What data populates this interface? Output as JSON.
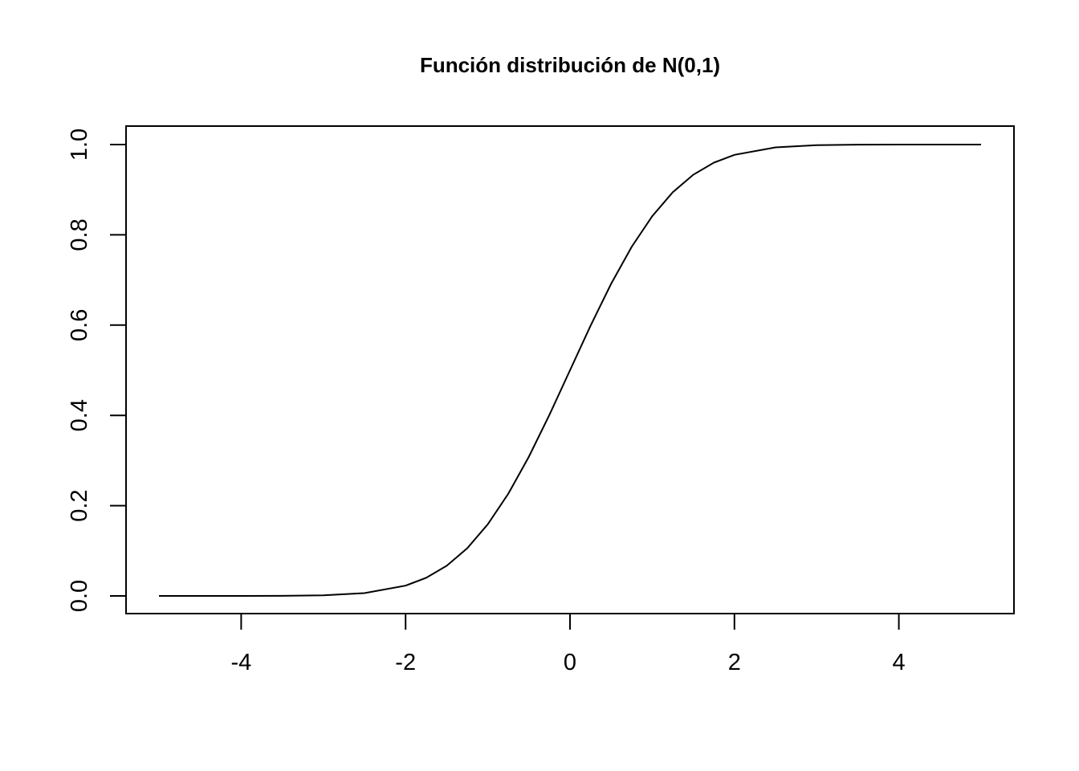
{
  "chart_data": {
    "type": "line",
    "title": "Función distribución de N(0,1)",
    "xlabel": "",
    "ylabel": "",
    "xlim": [
      -5,
      5
    ],
    "ylim": [
      0,
      1
    ],
    "xticks": [
      -4,
      -2,
      0,
      2,
      4
    ],
    "xtick_labels": [
      "-4",
      "-2",
      "0",
      "2",
      "4"
    ],
    "yticks": [
      0,
      0.2,
      0.4,
      0.6,
      0.8,
      1.0
    ],
    "ytick_labels": [
      "0.0",
      "0.2",
      "0.4",
      "0.6",
      "0.8",
      "1.0"
    ],
    "grid": false,
    "legend": "none",
    "series": [
      {
        "x": [
          -5,
          -4.5,
          -4,
          -3.5,
          -3,
          -2.5,
          -2,
          -1.75,
          -1.5,
          -1.25,
          -1,
          -0.75,
          -0.5,
          -0.25,
          0,
          0.25,
          0.5,
          0.75,
          1,
          1.25,
          1.5,
          1.75,
          2,
          2.5,
          3,
          3.5,
          4,
          4.5,
          5
        ],
        "y": [
          0.0,
          0.0,
          0.0,
          0.0002,
          0.0013,
          0.0062,
          0.0228,
          0.0401,
          0.0668,
          0.1056,
          0.1587,
          0.2266,
          0.3085,
          0.4013,
          0.5,
          0.5987,
          0.6915,
          0.7734,
          0.8413,
          0.8944,
          0.9332,
          0.9599,
          0.9772,
          0.9938,
          0.9987,
          0.9998,
          1.0,
          1.0,
          1.0
        ],
        "color": "#000000"
      }
    ]
  }
}
